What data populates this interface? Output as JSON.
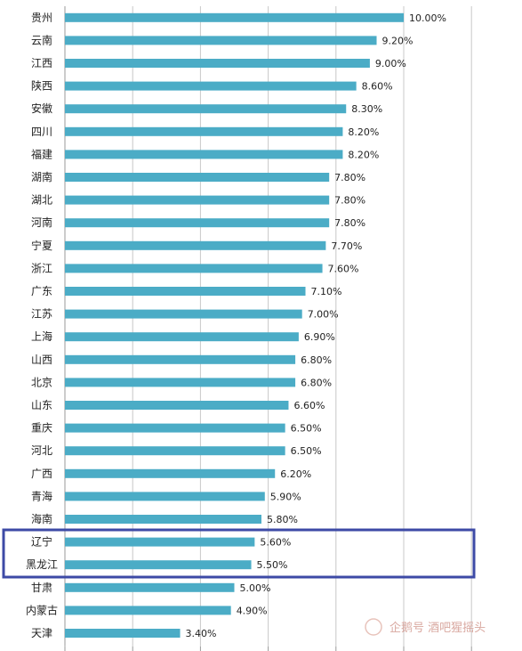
{
  "chart_data": {
    "type": "bar",
    "orientation": "horizontal",
    "title": "",
    "xlabel": "",
    "ylabel": "",
    "xlim": [
      0,
      10
    ],
    "grid": true,
    "legend": "none",
    "bar_color": "#4bacc6",
    "categories": [
      "贵州",
      "云南",
      "江西",
      "陕西",
      "安徽",
      "四川",
      "福建",
      "湖南",
      "湖北",
      "河南",
      "宁夏",
      "浙江",
      "广东",
      "江苏",
      "上海",
      "山西",
      "北京",
      "山东",
      "重庆",
      "河北",
      "广西",
      "青海",
      "海南",
      "辽宁",
      "黑龙江",
      "甘肃",
      "内蒙古",
      "天津"
    ],
    "values": [
      10.0,
      9.2,
      9.0,
      8.6,
      8.3,
      8.2,
      8.2,
      7.8,
      7.8,
      7.8,
      7.7,
      7.6,
      7.1,
      7.0,
      6.9,
      6.8,
      6.8,
      6.6,
      6.5,
      6.5,
      6.2,
      5.9,
      5.8,
      5.6,
      5.5,
      5.0,
      4.9,
      3.4
    ],
    "labels": [
      "10.00%",
      "9.20%",
      "9.00%",
      "8.60%",
      "8.30%",
      "8.20%",
      "8.20%",
      "7.80%",
      "7.80%",
      "7.80%",
      "7.70%",
      "7.60%",
      "7.10%",
      "7.00%",
      "6.90%",
      "6.80%",
      "6.80%",
      "6.60%",
      "6.50%",
      "6.50%",
      "6.20%",
      "5.90%",
      "5.80%",
      "5.60%",
      "5.50%",
      "5.00%",
      "4.90%",
      "3.40%"
    ],
    "highlight": {
      "categories": [
        "辽宁",
        "黑龙江"
      ],
      "box_color": "#3d4aa6"
    }
  },
  "watermark": {
    "text": "企鹅号 酒吧猩摇头"
  }
}
